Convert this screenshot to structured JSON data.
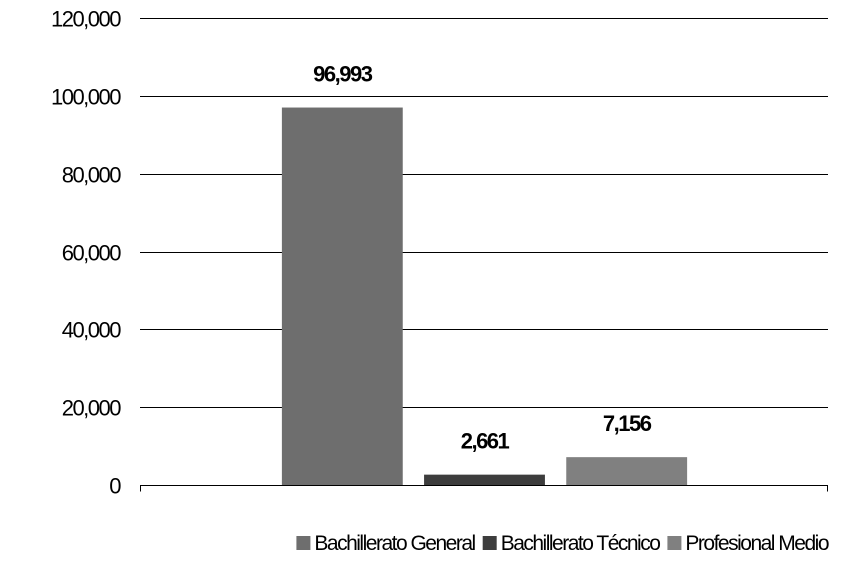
{
  "chart_data": {
    "type": "bar",
    "categories": [
      "Bachillerato General",
      "Bachillerato Técnico",
      "Profesional Medio"
    ],
    "series": [
      {
        "name": "Bachillerato General",
        "color": "#6e6e6e",
        "value": 96993,
        "label": "96,993"
      },
      {
        "name": "Bachillerato Técnico",
        "color": "#3d3d3d",
        "value": 2661,
        "label": "2,661"
      },
      {
        "name": "Profesional Medio",
        "color": "#808080",
        "value": 7156,
        "label": "7,156"
      }
    ],
    "ylim": [
      0,
      120000
    ],
    "yticks": [
      {
        "value": 0,
        "label": "0"
      },
      {
        "value": 20000,
        "label": "20,000"
      },
      {
        "value": 40000,
        "label": "40,000"
      },
      {
        "value": 60000,
        "label": "60,000"
      },
      {
        "value": 80000,
        "label": "80,000"
      },
      {
        "value": 100000,
        "label": "100,000"
      },
      {
        "value": 120000,
        "label": "120,000"
      }
    ],
    "grid": true,
    "legend_position": "bottom"
  }
}
